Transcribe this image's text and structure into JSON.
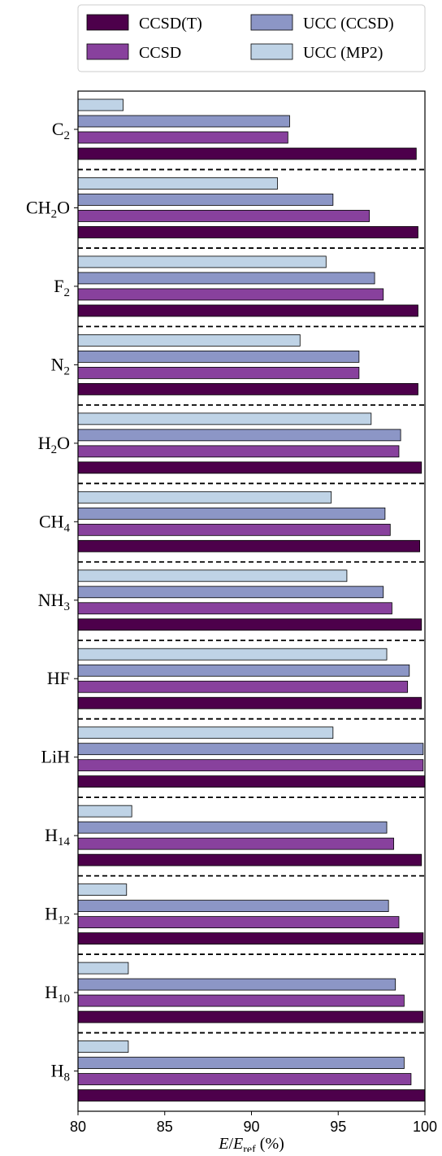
{
  "chart_data": {
    "type": "bar",
    "orientation": "horizontal",
    "categories": [
      {
        "base": "C",
        "sub": "2"
      },
      {
        "base": "CH",
        "sub": "2",
        "tail": "O"
      },
      {
        "base": "F",
        "sub": "2"
      },
      {
        "base": "N",
        "sub": "2"
      },
      {
        "base": "H",
        "sub": "2",
        "tail": "O"
      },
      {
        "base": "CH",
        "sub": "4"
      },
      {
        "base": "NH",
        "sub": "3"
      },
      {
        "base": "HF"
      },
      {
        "base": "LiH"
      },
      {
        "base": "H",
        "sub": "14"
      },
      {
        "base": "H",
        "sub": "12"
      },
      {
        "base": "H",
        "sub": "10"
      },
      {
        "base": "H",
        "sub": "8"
      }
    ],
    "series": [
      {
        "name": "CCSD(T)",
        "color": "#4d004b",
        "values": [
          99.5,
          99.6,
          99.6,
          99.6,
          99.8,
          99.7,
          99.8,
          99.8,
          100.0,
          99.8,
          99.9,
          99.9,
          100.0
        ]
      },
      {
        "name": "CCSD",
        "color": "#88419d",
        "values": [
          92.1,
          96.8,
          97.6,
          96.2,
          98.5,
          98.0,
          98.1,
          99.0,
          99.9,
          98.2,
          98.5,
          98.8,
          99.2
        ]
      },
      {
        "name": "UCC (CCSD)",
        "color": "#8c96c6",
        "values": [
          92.2,
          94.7,
          97.1,
          96.2,
          98.6,
          97.7,
          97.6,
          99.1,
          99.9,
          97.8,
          97.9,
          98.3,
          98.8
        ]
      },
      {
        "name": "UCC (MP2)",
        "color": "#bfd3e6",
        "values": [
          82.6,
          91.5,
          94.3,
          92.8,
          96.9,
          94.6,
          95.5,
          97.8,
          94.7,
          83.1,
          82.8,
          82.9,
          82.9
        ]
      }
    ],
    "xlim": [
      80,
      100
    ],
    "xticks": [
      "80",
      "85",
      "90",
      "95",
      "100"
    ],
    "xlabel": {
      "italic1": "E",
      "slash": "/",
      "italic2": "E",
      "sub": "ref",
      "rest": " (%)"
    },
    "legend_position": "top-center",
    "grid": false,
    "separators": "dashed"
  }
}
